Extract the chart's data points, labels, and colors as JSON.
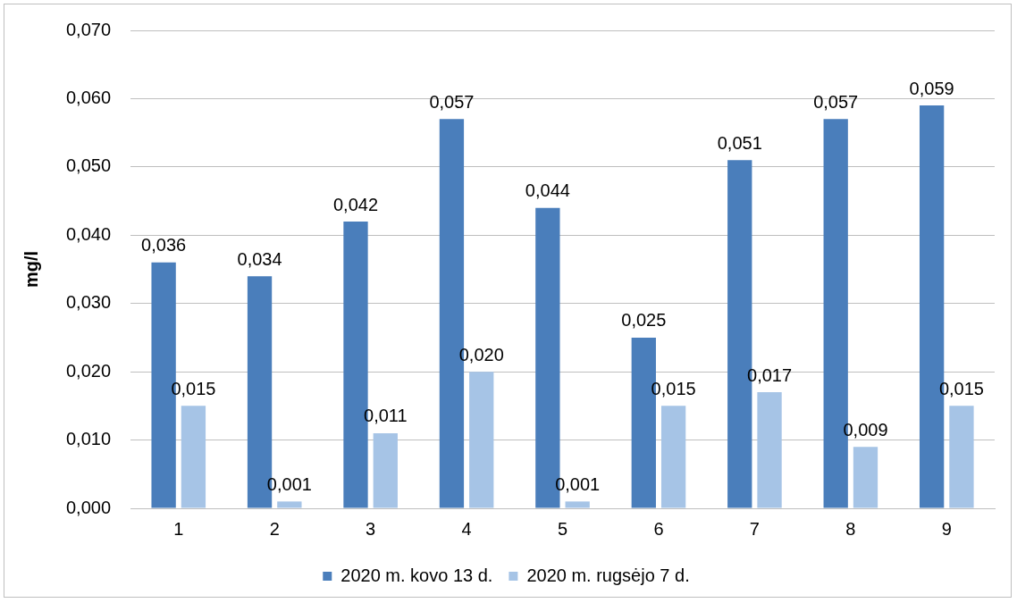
{
  "chart_data": {
    "type": "bar",
    "ylabel": "mg/l",
    "categories": [
      "1",
      "2",
      "3",
      "4",
      "5",
      "6",
      "7",
      "8",
      "9"
    ],
    "series": [
      {
        "name": "2020 m. kovo 13 d.",
        "color": "#4a7ebb",
        "values": [
          0.036,
          0.034,
          0.042,
          0.057,
          0.044,
          0.025,
          0.051,
          0.057,
          0.059
        ],
        "value_labels": [
          "0,036",
          "0,034",
          "0,042",
          "0,057",
          "0,044",
          "0,025",
          "0,051",
          "0,057",
          "0,059"
        ]
      },
      {
        "name": "2020 m. rugsėjo 7 d.",
        "color": "#a6c4e6",
        "values": [
          0.015,
          0.001,
          0.011,
          0.02,
          0.001,
          0.015,
          0.017,
          0.009,
          0.015
        ],
        "value_labels": [
          "0,015",
          "0,001",
          "0,011",
          "0,020",
          "0,001",
          "0,015",
          "0,017",
          "0,009",
          "0,015"
        ]
      }
    ],
    "ylim": [
      0,
      0.07
    ],
    "yticks": [
      {
        "value": 0,
        "label": "0,000"
      },
      {
        "value": 0.01,
        "label": "0,010"
      },
      {
        "value": 0.02,
        "label": "0,020"
      },
      {
        "value": 0.03,
        "label": "0,030"
      },
      {
        "value": 0.04,
        "label": "0,040"
      },
      {
        "value": 0.05,
        "label": "0,050"
      },
      {
        "value": 0.06,
        "label": "0,060"
      },
      {
        "value": 0.07,
        "label": "0,070"
      }
    ],
    "grid": "y",
    "legend": "bottom"
  }
}
